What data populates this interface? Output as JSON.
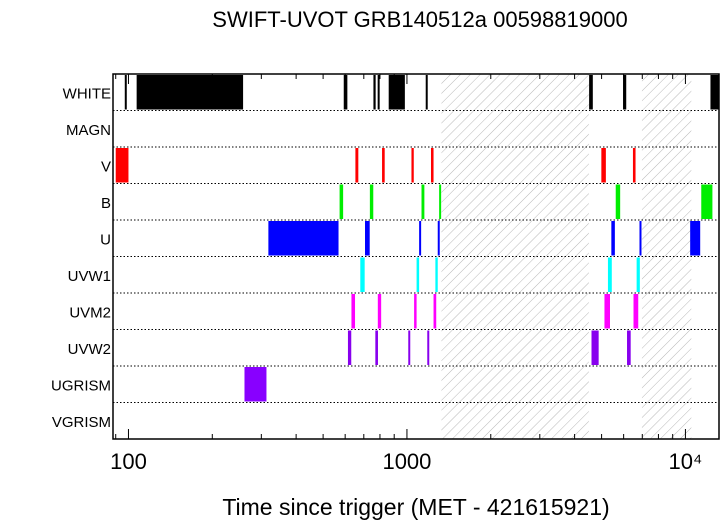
{
  "chart_data": {
    "type": "timeline",
    "title": "SWIFT-UVOT GRB140512a 00598819000",
    "xlabel": "Time since trigger (MET - 421615921)",
    "ylabel": "",
    "xscale": "log",
    "xlim": [
      88,
      13200
    ],
    "xticks": [
      {
        "value": 100,
        "label": "100"
      },
      {
        "value": 1000,
        "label": "1000"
      },
      {
        "value": 10000,
        "label": "10⁴"
      }
    ],
    "grid": "dotted horizontal row separators",
    "filters": [
      "WHITE",
      "MAGN",
      "V",
      "B",
      "U",
      "UVW1",
      "UVM2",
      "UVW2",
      "UGRISM",
      "VGRISM"
    ],
    "colors": {
      "WHITE": "#000000",
      "MAGN": "#000000",
      "V": "#ff0000",
      "B": "#00ee00",
      "U": "#0000ff",
      "UVW1": "#00ffff",
      "UVM2": "#ff00ff",
      "UVW2": "#8800ee",
      "UGRISM": "#8800ff",
      "VGRISM": "#000000"
    },
    "hatched_gaps": [
      [
        1330,
        4500
      ],
      [
        6980,
        10500
      ]
    ],
    "exposures": {
      "WHITE": [
        [
          97,
          98
        ],
        [
          107,
          258
        ],
        [
          593,
          611
        ],
        [
          758,
          772
        ],
        [
          785,
          794
        ],
        [
          860,
          983
        ],
        [
          1168,
          1185
        ],
        [
          4510,
          4650
        ],
        [
          5970,
          6130
        ],
        [
          12300,
          13200
        ]
      ],
      "MAGN": [],
      "V": [
        [
          90,
          100
        ],
        [
          653,
          669
        ],
        [
          814,
          832
        ],
        [
          1038,
          1058
        ],
        [
          1220,
          1246
        ],
        [
          4990,
          5180
        ],
        [
          6480,
          6620
        ]
      ],
      "B": [
        [
          573,
          590
        ],
        [
          736,
          757
        ],
        [
          1128,
          1155
        ],
        [
          1305,
          1325
        ],
        [
          5620,
          5830
        ],
        [
          11400,
          12500
        ]
      ],
      "U": [
        [
          318,
          568
        ],
        [
          707,
          735
        ],
        [
          1106,
          1124
        ],
        [
          1290,
          1305
        ],
        [
          5420,
          5580
        ],
        [
          6840,
          6930
        ],
        [
          10400,
          11300
        ]
      ],
      "UVW1": [
        [
          680,
          705
        ],
        [
          1083,
          1106
        ],
        [
          1265,
          1290
        ],
        [
          5270,
          5440
        ],
        [
          6680,
          6860
        ]
      ],
      "UVM2": [
        [
          632,
          651
        ],
        [
          786,
          808
        ],
        [
          1061,
          1083
        ],
        [
          1246,
          1274
        ],
        [
          5120,
          5360
        ],
        [
          6510,
          6770
        ]
      ],
      "UVW2": [
        [
          614,
          631
        ],
        [
          770,
          787
        ],
        [
          1011,
          1025
        ],
        [
          1183,
          1197
        ],
        [
          4600,
          4880
        ],
        [
          6170,
          6360
        ]
      ],
      "UGRISM": [
        [
          261,
          313
        ]
      ],
      "VGRISM": []
    }
  }
}
